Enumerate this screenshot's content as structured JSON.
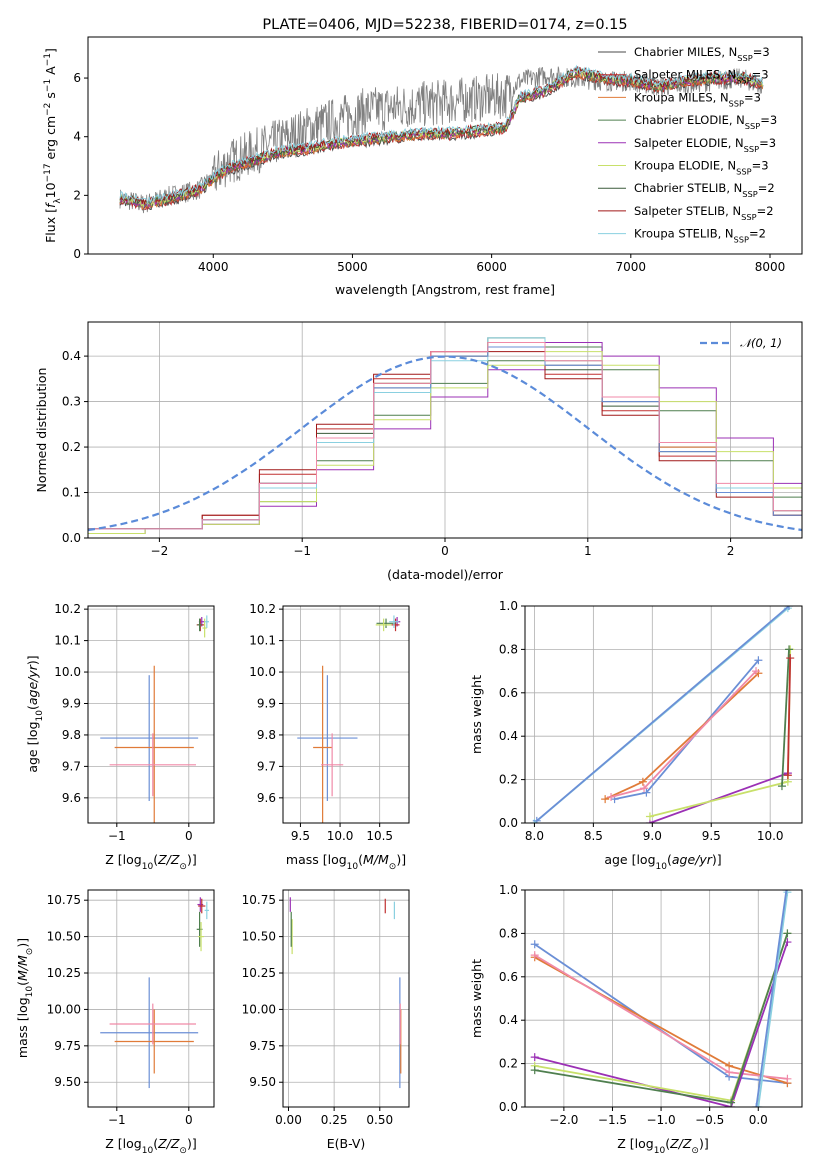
{
  "chart_data": [
    {
      "id": "spectrum",
      "type": "line",
      "title": "PLATE=0406, MJD=52238, FIBERID=0174, z=0.15",
      "xlabel": "wavelength [Angstrom, rest frame]",
      "ylabel_parts": [
        "Flux [",
        "f",
        "λ",
        "10",
        "−17",
        " erg cm",
        "−2",
        " s",
        "−1",
        " A",
        "−1",
        "]"
      ],
      "xlim": [
        3100,
        8230
      ],
      "ylim": [
        0,
        7.4
      ],
      "xticks": [
        4000,
        5000,
        6000,
        7000,
        8000
      ],
      "yticks": [
        0,
        2,
        4,
        6
      ],
      "x": [
        3330,
        3500,
        3700,
        3900,
        4100,
        4300,
        4500,
        4700,
        4900,
        5100,
        5300,
        5500,
        5700,
        5900,
        6100,
        6200,
        6400,
        6600,
        6800,
        7000,
        7200,
        7400,
        7600,
        7800,
        7950
      ],
      "observed_flux": [
        1.9,
        1.7,
        2.0,
        2.2,
        3.1,
        3.5,
        3.9,
        4.3,
        4.6,
        4.9,
        5.0,
        5.1,
        5.2,
        5.3,
        5.4,
        5.9,
        6.1,
        6.0,
        5.9,
        5.9,
        5.7,
        5.8,
        5.9,
        6.0,
        5.7
      ],
      "model_flux": [
        1.9,
        1.7,
        1.9,
        2.2,
        2.9,
        3.2,
        3.5,
        3.6,
        3.8,
        3.9,
        4.0,
        4.1,
        4.1,
        4.2,
        4.3,
        5.3,
        5.6,
        6.2,
        6.0,
        5.9,
        5.7,
        5.9,
        6.0,
        6.0,
        5.8
      ],
      "legend_position": "upper right",
      "legend": [
        {
          "main": "Chabrier MILES, N",
          "sub": "SSP",
          "tail": "=3",
          "color": "#4a4a4a"
        },
        {
          "main": "Salpeter MILES, N",
          "sub": "SSP",
          "tail": "=3",
          "color": "#c03030"
        },
        {
          "main": "Kroupa MILES, N",
          "sub": "SSP",
          "tail": "=3",
          "color": "#e07b39"
        },
        {
          "main": "Chabrier ELODIE, N",
          "sub": "SSP",
          "tail": "=3",
          "color": "#4f7f4f"
        },
        {
          "main": "Salpeter ELODIE, N",
          "sub": "SSP",
          "tail": "=3",
          "color": "#9b30b5"
        },
        {
          "main": "Kroupa ELODIE, N",
          "sub": "SSP",
          "tail": "=3",
          "color": "#c8e06a"
        },
        {
          "main": "Chabrier STELIB, N",
          "sub": "SSP",
          "tail": "=2",
          "color": "#3a5a3a"
        },
        {
          "main": "Salpeter STELIB, N",
          "sub": "SSP",
          "tail": "=2",
          "color": "#a01818"
        },
        {
          "main": "Kroupa STELIB, N",
          "sub": "SSP",
          "tail": "=2",
          "color": "#8ad0e0"
        }
      ]
    },
    {
      "id": "residuals",
      "type": "line",
      "xlabel": "(data-model)/error",
      "ylabel": "Normed distribution",
      "xlim": [
        -2.5,
        2.5
      ],
      "ylim": [
        0,
        0.475
      ],
      "xticks": [
        -2,
        -1,
        0,
        1,
        2
      ],
      "yticks": [
        0.0,
        0.1,
        0.2,
        0.3,
        0.4
      ],
      "grid": true,
      "legend_label": "𝒩(0, 1)",
      "reference_curve": "standard normal",
      "bin_edges": [
        -2.5,
        -2.1,
        -1.7,
        -1.3,
        -0.9,
        -0.5,
        -0.1,
        0.3,
        0.7,
        1.1,
        1.5,
        1.9,
        2.3,
        2.5
      ],
      "series": [
        {
          "color": "#4a4a4a",
          "values": [
            0.02,
            0.02,
            0.04,
            0.12,
            0.22,
            0.33,
            0.4,
            0.43,
            0.38,
            0.3,
            0.2,
            0.1,
            0.06
          ]
        },
        {
          "color": "#c03030",
          "values": [
            0.02,
            0.02,
            0.05,
            0.14,
            0.24,
            0.35,
            0.41,
            0.42,
            0.36,
            0.28,
            0.18,
            0.1,
            0.05
          ]
        },
        {
          "color": "#e07b39",
          "values": [
            0.02,
            0.02,
            0.04,
            0.12,
            0.22,
            0.34,
            0.4,
            0.43,
            0.39,
            0.31,
            0.2,
            0.11,
            0.06
          ]
        },
        {
          "color": "#4f7f4f",
          "values": [
            0.01,
            0.02,
            0.03,
            0.08,
            0.17,
            0.27,
            0.34,
            0.39,
            0.42,
            0.37,
            0.28,
            0.17,
            0.09
          ]
        },
        {
          "color": "#9b30b5",
          "values": [
            0.01,
            0.02,
            0.03,
            0.07,
            0.15,
            0.24,
            0.31,
            0.37,
            0.43,
            0.4,
            0.33,
            0.22,
            0.12
          ]
        },
        {
          "color": "#c8e06a",
          "values": [
            0.01,
            0.02,
            0.03,
            0.08,
            0.16,
            0.26,
            0.33,
            0.38,
            0.41,
            0.38,
            0.3,
            0.19,
            0.11
          ]
        },
        {
          "color": "#3a5a3a",
          "values": [
            0.02,
            0.02,
            0.04,
            0.12,
            0.23,
            0.34,
            0.4,
            0.44,
            0.37,
            0.29,
            0.19,
            0.1,
            0.05
          ]
        },
        {
          "color": "#a01818",
          "values": [
            0.02,
            0.02,
            0.05,
            0.15,
            0.25,
            0.36,
            0.41,
            0.41,
            0.35,
            0.27,
            0.17,
            0.09,
            0.05
          ]
        },
        {
          "color": "#8ad0e0",
          "values": [
            0.02,
            0.02,
            0.04,
            0.11,
            0.21,
            0.32,
            0.39,
            0.44,
            0.39,
            0.31,
            0.21,
            0.11,
            0.06
          ]
        },
        {
          "color": "#6b8fd6",
          "values": [
            0.02,
            0.02,
            0.04,
            0.12,
            0.22,
            0.33,
            0.4,
            0.42,
            0.38,
            0.3,
            0.19,
            0.1,
            0.05
          ]
        },
        {
          "color": "#f08aa8",
          "values": [
            0.02,
            0.02,
            0.04,
            0.12,
            0.22,
            0.34,
            0.41,
            0.43,
            0.39,
            0.31,
            0.21,
            0.12,
            0.06
          ]
        }
      ]
    },
    {
      "id": "age_vs_Z",
      "type": "scatter",
      "xlabel": "Z [log10(Z/Z⊙)]",
      "ylabel": "age  [log10(age/yr)]",
      "xlim": [
        -1.4,
        0.35
      ],
      "ylim": [
        9.52,
        10.21
      ],
      "xticks": [
        -1,
        0
      ],
      "yticks": [
        9.6,
        9.7,
        9.8,
        9.9,
        10.0,
        10.1,
        10.2
      ],
      "grid": true,
      "points": [
        {
          "x": -0.55,
          "y": 9.79,
          "xerr": 0.68,
          "yerr": 0.2,
          "color": "#6b8fd6"
        },
        {
          "x": -0.48,
          "y": 9.76,
          "xerr": 0.55,
          "yerr": 0.26,
          "color": "#e07b39"
        },
        {
          "x": -0.5,
          "y": 9.705,
          "xerr": 0.6,
          "yerr": 0.1,
          "color": "#f08aa8"
        },
        {
          "x": 0.18,
          "y": 10.16,
          "xerr": 0.04,
          "yerr": 0.015,
          "color": "#9b30b5"
        },
        {
          "x": 0.16,
          "y": 10.15,
          "xerr": 0.05,
          "yerr": 0.02,
          "color": "#c03030"
        },
        {
          "x": 0.15,
          "y": 10.15,
          "xerr": 0.03,
          "yerr": 0.02,
          "color": "#4f7f4f"
        },
        {
          "x": 0.22,
          "y": 10.14,
          "xerr": 0.03,
          "yerr": 0.03,
          "color": "#c8e06a"
        },
        {
          "x": 0.25,
          "y": 10.16,
          "xerr": 0.03,
          "yerr": 0.02,
          "color": "#8ad0e0"
        }
      ]
    },
    {
      "id": "age_vs_mass",
      "type": "scatter",
      "xlabel": "mass [log10(M/M⊙)]",
      "ylabel": "",
      "xlim": [
        9.28,
        10.87
      ],
      "ylim": [
        9.52,
        10.21
      ],
      "xticks": [
        9.5,
        10.0,
        10.5
      ],
      "yticks": [
        9.6,
        9.7,
        9.8,
        9.9,
        10.0,
        10.1,
        10.2
      ],
      "grid": true,
      "points": [
        {
          "x": 9.84,
          "y": 9.79,
          "xerr": 0.38,
          "yerr": 0.2,
          "color": "#6b8fd6"
        },
        {
          "x": 9.78,
          "y": 9.76,
          "xerr": 0.12,
          "yerr": 0.26,
          "color": "#e07b39"
        },
        {
          "x": 9.9,
          "y": 9.705,
          "xerr": 0.14,
          "yerr": 0.1,
          "color": "#f08aa8"
        },
        {
          "x": 10.72,
          "y": 10.16,
          "xerr": 0.04,
          "yerr": 0.015,
          "color": "#9b30b5"
        },
        {
          "x": 10.7,
          "y": 10.15,
          "xerr": 0.05,
          "yerr": 0.02,
          "color": "#c03030"
        },
        {
          "x": 10.58,
          "y": 10.155,
          "xerr": 0.12,
          "yerr": 0.015,
          "color": "#4f7f4f"
        },
        {
          "x": 10.55,
          "y": 10.15,
          "xerr": 0.1,
          "yerr": 0.02,
          "color": "#c8e06a"
        },
        {
          "x": 10.68,
          "y": 10.16,
          "xerr": 0.06,
          "yerr": 0.02,
          "color": "#8ad0e0"
        }
      ]
    },
    {
      "id": "weight_vs_age",
      "type": "line",
      "xlabel": "age  [log10(age/yr)]",
      "ylabel": "mass weight",
      "xlim": [
        7.92,
        10.27
      ],
      "ylim": [
        0,
        1
      ],
      "xticks": [
        8.0,
        8.5,
        9.0,
        9.5,
        10.0
      ],
      "yticks": [
        0.0,
        0.2,
        0.4,
        0.6,
        0.8,
        1.0
      ],
      "grid": true,
      "series": [
        {
          "color": "#6b8fd6",
          "x": [
            8.68,
            8.95,
            9.9
          ],
          "y": [
            0.11,
            0.14,
            0.75
          ]
        },
        {
          "color": "#e07b39",
          "x": [
            8.6,
            8.92,
            9.9
          ],
          "y": [
            0.11,
            0.19,
            0.69
          ]
        },
        {
          "color": "#f08aa8",
          "x": [
            8.65,
            8.93,
            9.88
          ],
          "y": [
            0.12,
            0.16,
            0.7
          ]
        },
        {
          "color": "#9b30b5",
          "x": [
            8.98,
            10.15
          ],
          "y": [
            0.0,
            0.23
          ]
        },
        {
          "color": "#c8e06a",
          "x": [
            8.98,
            10.15,
            10.17
          ],
          "y": [
            0.03,
            0.19,
            0.8
          ]
        },
        {
          "color": "#4f7f4f",
          "x": [
            10.1,
            10.16
          ],
          "y": [
            0.17,
            0.8
          ]
        },
        {
          "color": "#c03030",
          "x": [
            10.15,
            10.17
          ],
          "y": [
            0.22,
            0.76
          ]
        },
        {
          "color": "#8ad0e0",
          "x": [
            8.0,
            10.15
          ],
          "y": [
            0.0,
            0.99
          ]
        },
        {
          "color": "#6b8fd6",
          "x": [
            8.02,
            10.16
          ],
          "y": [
            0.01,
            1.0
          ]
        }
      ]
    },
    {
      "id": "mass_vs_Z",
      "type": "scatter",
      "xlabel": "Z [log10(Z/Z⊙)]",
      "ylabel": "mass [log10(M/M⊙)]",
      "xlim": [
        -1.4,
        0.35
      ],
      "ylim": [
        9.33,
        10.82
      ],
      "xticks": [
        -1,
        0
      ],
      "yticks": [
        9.5,
        9.75,
        10.0,
        10.25,
        10.5,
        10.75
      ],
      "grid": true,
      "points": [
        {
          "x": -0.55,
          "y": 9.84,
          "xerr": 0.68,
          "yerr": 0.38,
          "color": "#6b8fd6"
        },
        {
          "x": -0.48,
          "y": 9.78,
          "xerr": 0.55,
          "yerr": 0.22,
          "color": "#e07b39"
        },
        {
          "x": -0.5,
          "y": 9.9,
          "xerr": 0.6,
          "yerr": 0.14,
          "color": "#f08aa8"
        },
        {
          "x": 0.16,
          "y": 10.72,
          "xerr": 0.04,
          "yerr": 0.05,
          "color": "#9b30b5"
        },
        {
          "x": 0.18,
          "y": 10.71,
          "xerr": 0.05,
          "yerr": 0.05,
          "color": "#c03030"
        },
        {
          "x": 0.15,
          "y": 10.55,
          "xerr": 0.04,
          "yerr": 0.12,
          "color": "#4f7f4f"
        },
        {
          "x": 0.17,
          "y": 10.5,
          "xerr": 0.04,
          "yerr": 0.1,
          "color": "#c8e06a"
        },
        {
          "x": 0.25,
          "y": 10.68,
          "xerr": 0.03,
          "yerr": 0.06,
          "color": "#8ad0e0"
        }
      ]
    },
    {
      "id": "mass_vs_ebv",
      "type": "scatter",
      "xlabel": "E(B-V)",
      "ylabel": "",
      "xlim": [
        -0.03,
        0.66
      ],
      "ylim": [
        9.33,
        10.82
      ],
      "xticks": [
        0.0,
        0.25,
        0.5
      ],
      "yticks": [
        9.5,
        9.75,
        10.0,
        10.25,
        10.5,
        10.75
      ],
      "grid": true,
      "points": [
        {
          "x": 0.61,
          "y": 9.84,
          "xerr": 0.0,
          "yerr": 0.38,
          "color": "#6b8fd6"
        },
        {
          "x": 0.615,
          "y": 9.78,
          "xerr": 0.0,
          "yerr": 0.22,
          "color": "#e07b39"
        },
        {
          "x": 0.612,
          "y": 9.9,
          "xerr": 0.0,
          "yerr": 0.14,
          "color": "#f08aa8"
        },
        {
          "x": 0.53,
          "y": 10.71,
          "xerr": 0.0,
          "yerr": 0.05,
          "color": "#c03030"
        },
        {
          "x": 0.58,
          "y": 10.68,
          "xerr": 0.0,
          "yerr": 0.06,
          "color": "#8ad0e0"
        },
        {
          "x": 0.01,
          "y": 10.72,
          "xerr": 0.0,
          "yerr": 0.05,
          "color": "#9b30b5"
        },
        {
          "x": 0.02,
          "y": 10.5,
          "xerr": 0.0,
          "yerr": 0.12,
          "color": "#c8e06a"
        },
        {
          "x": 0.015,
          "y": 10.55,
          "xerr": 0.0,
          "yerr": 0.12,
          "color": "#4f7f4f"
        }
      ]
    },
    {
      "id": "weight_vs_Z",
      "type": "line",
      "xlabel": "Z [log10(Z/Z⊙)]",
      "ylabel": "mass weight",
      "xlim": [
        -2.4,
        0.45
      ],
      "ylim": [
        0,
        1
      ],
      "xticks": [
        -2.0,
        -1.5,
        -1.0,
        -0.5,
        0.0
      ],
      "yticks": [
        0.0,
        0.2,
        0.4,
        0.6,
        0.8,
        1.0
      ],
      "grid": true,
      "series": [
        {
          "color": "#6b8fd6",
          "x": [
            -2.3,
            -0.3,
            0.3
          ],
          "y": [
            0.75,
            0.14,
            0.11
          ]
        },
        {
          "color": "#e07b39",
          "x": [
            -2.3,
            -0.3,
            0.3
          ],
          "y": [
            0.69,
            0.19,
            0.11
          ]
        },
        {
          "color": "#f08aa8",
          "x": [
            -2.3,
            -0.3,
            0.3
          ],
          "y": [
            0.7,
            0.16,
            0.13
          ]
        },
        {
          "color": "#9b30b5",
          "x": [
            -2.3,
            -0.28,
            0.3
          ],
          "y": [
            0.23,
            0.0,
            0.76
          ]
        },
        {
          "color": "#c8e06a",
          "x": [
            -2.3,
            -0.28,
            0.3
          ],
          "y": [
            0.19,
            0.03,
            0.8
          ]
        },
        {
          "color": "#4f7f4f",
          "x": [
            -2.3,
            -0.28,
            0.3
          ],
          "y": [
            0.17,
            0.02,
            0.8
          ]
        },
        {
          "color": "#8ad0e0",
          "x": [
            0.0,
            0.3
          ],
          "y": [
            0.0,
            0.99
          ]
        },
        {
          "color": "#6b8fd6",
          "x": [
            -0.02,
            0.29
          ],
          "y": [
            0.0,
            1.0
          ]
        }
      ]
    }
  ]
}
